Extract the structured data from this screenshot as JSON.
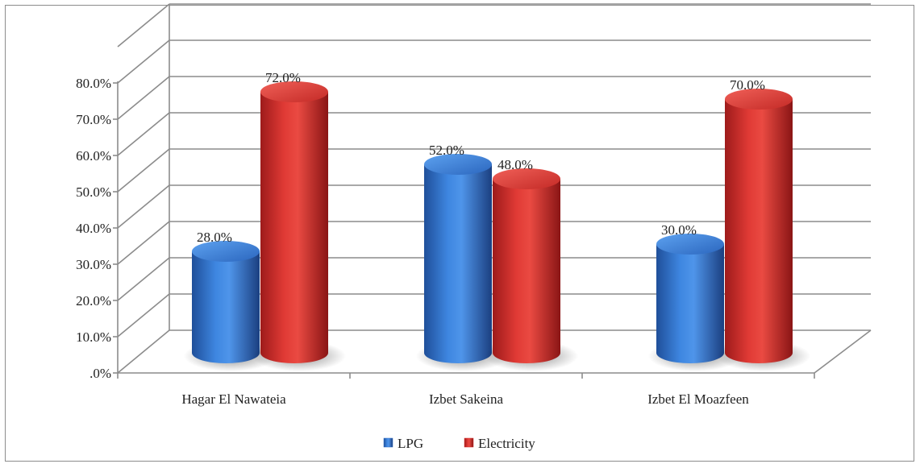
{
  "chart_data": {
    "type": "bar",
    "style": "3d-cylinder",
    "categories": [
      "Hagar El Nawateia",
      "Izbet Sakeina",
      "Izbet El Moazfeen"
    ],
    "series": [
      {
        "name": "LPG",
        "values": [
          28.0,
          52.0,
          30.0
        ],
        "color": "#2e6bc4"
      },
      {
        "name": "Electricity",
        "values": [
          72.0,
          48.0,
          70.0
        ],
        "color": "#d42b2b"
      }
    ],
    "data_labels": [
      [
        "28.0%",
        "52.0%",
        "30.0%"
      ],
      [
        "72.0%",
        "48.0%",
        "70.0%"
      ]
    ],
    "y_tick_labels": [
      ".0%",
      "10.0%",
      "20.0%",
      "30.0%",
      "40.0%",
      "50.0%",
      "60.0%",
      "70.0%",
      "80.0%"
    ],
    "ylim": [
      0,
      90
    ],
    "grid": true,
    "legend_position": "bottom"
  }
}
